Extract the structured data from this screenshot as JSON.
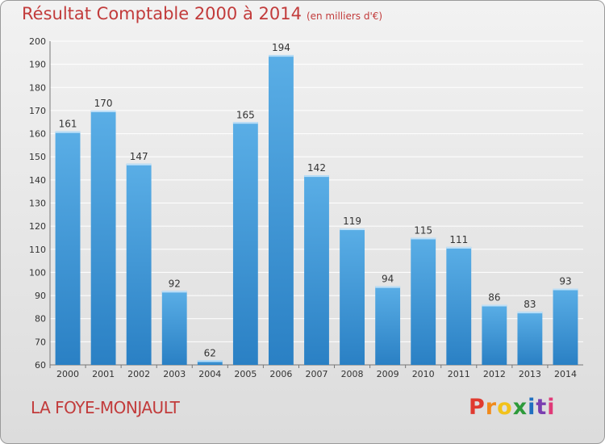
{
  "chart_data": {
    "type": "bar",
    "title": "Résultat Comptable 2000 à 2014",
    "subtitle": "(en milliers d'€)",
    "categories": [
      "2000",
      "2001",
      "2002",
      "2003",
      "2004",
      "2005",
      "2006",
      "2007",
      "2008",
      "2009",
      "2010",
      "2011",
      "2012",
      "2013",
      "2014"
    ],
    "values": [
      161,
      170,
      147,
      92,
      62,
      165,
      194,
      142,
      119,
      94,
      115,
      111,
      86,
      83,
      93
    ],
    "ylim": [
      60,
      200
    ],
    "yticks": [
      60,
      70,
      80,
      90,
      100,
      110,
      120,
      130,
      140,
      150,
      160,
      170,
      180,
      190,
      200
    ],
    "grid": true,
    "xlabel": "",
    "ylabel": ""
  },
  "commune": "LA FOYE-MONJAULT",
  "logo": {
    "letters": [
      "P",
      "r",
      "o",
      "x",
      "i",
      "t",
      "i"
    ],
    "colors": [
      "#e03a2f",
      "#f08a1c",
      "#f2c21b",
      "#2d9a3a",
      "#1f6fc0",
      "#7a3fb0",
      "#e03a78"
    ]
  },
  "colors": {
    "title": "#c23b3b",
    "bar_light": "#5aaee6",
    "bar_dark": "#2a80c4",
    "grid": "#ffffff"
  }
}
